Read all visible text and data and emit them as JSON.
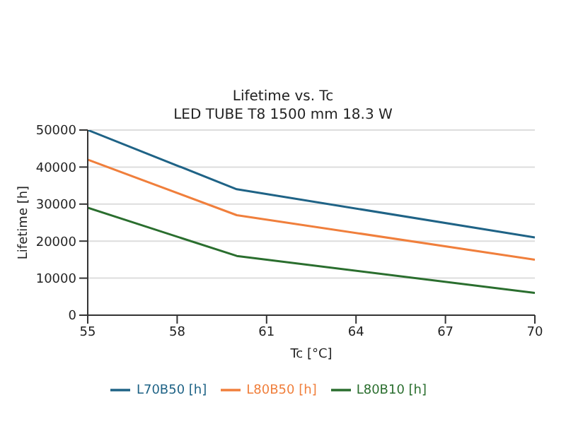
{
  "chart_data": {
    "type": "line",
    "title": "Lifetime vs. Tc",
    "subtitle": "LED TUBE T8 1500 mm 18.3 W",
    "xlabel": "Tc [°C]",
    "ylabel": "Lifetime [h]",
    "x": [
      55,
      60,
      70
    ],
    "xlim": [
      55,
      70
    ],
    "xticks": [
      55,
      58,
      61,
      64,
      67,
      70
    ],
    "ylim": [
      0,
      50000
    ],
    "yticks": [
      0,
      10000,
      20000,
      30000,
      40000,
      50000
    ],
    "grid": "y",
    "legend": "bottom",
    "marker": "none",
    "line_style": "solid",
    "series": [
      {
        "name": "L70B50 [h]",
        "color": "#1f6386",
        "values": [
          50000,
          34000,
          21000
        ]
      },
      {
        "name": "L80B50 [h]",
        "color": "#f07f3c",
        "values": [
          42000,
          27000,
          15000
        ]
      },
      {
        "name": "L80B10 [h]",
        "color": "#2a6e2e",
        "values": [
          29000,
          16000,
          6000
        ]
      }
    ]
  }
}
